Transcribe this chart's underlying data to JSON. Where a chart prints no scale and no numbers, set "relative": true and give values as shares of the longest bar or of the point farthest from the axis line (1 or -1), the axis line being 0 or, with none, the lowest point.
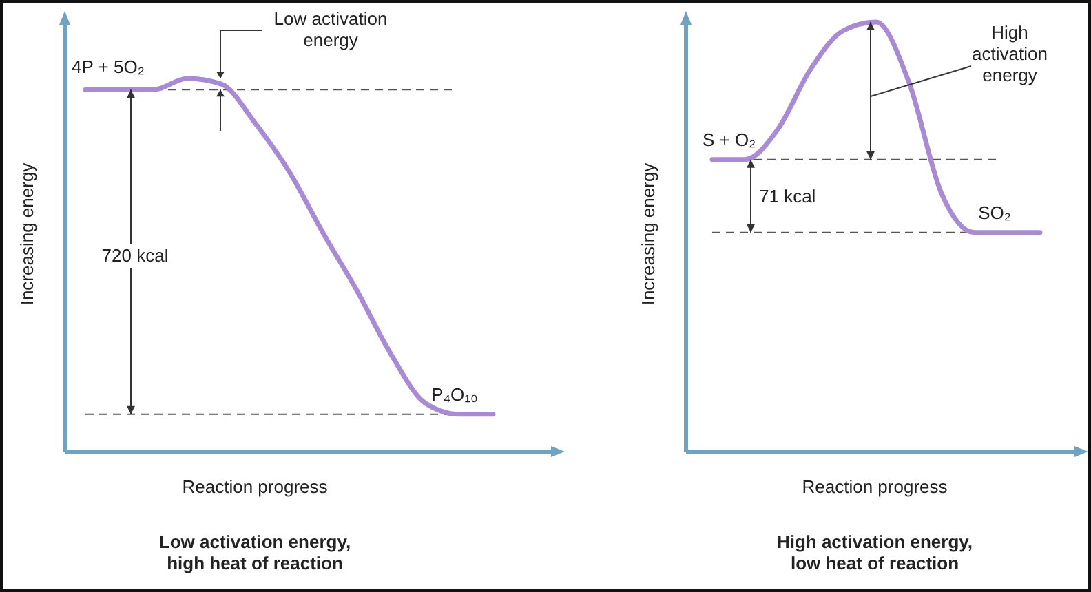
{
  "chart_data": [
    {
      "type": "line",
      "title": "Low activation energy, high heat of reaction",
      "xlabel": "Reaction progress",
      "ylabel": "Increasing energy",
      "relative": true,
      "categories": [
        null,
        null,
        null,
        null,
        null,
        null,
        null,
        null,
        null,
        null,
        null,
        null,
        null
      ],
      "series": [
        {
          "color": "#a88bd2",
          "values": [
            0.97,
            0.97,
            0.97,
            1.0,
            0.985,
            0.88,
            0.75,
            0.585,
            0.43,
            0.26,
            0.13,
            0.1,
            0.1
          ]
        }
      ],
      "ref_lines": [
        {
          "axis": "y",
          "value": 0.97,
          "line_style": "dashed"
        },
        {
          "axis": "y",
          "value": 0.1,
          "line_style": "dashed"
        }
      ],
      "annotations": [
        "4P + 5O₂",
        "Low activation energy",
        "720 kcal",
        "P₄O₁₀"
      ]
    },
    {
      "type": "line",
      "title": "High activation energy, low heat of reaction",
      "xlabel": "Reaction progress",
      "ylabel": "Increasing energy",
      "relative": true,
      "categories": [
        null,
        null,
        null,
        null,
        null,
        null,
        null,
        null,
        null,
        null,
        null
      ],
      "series": [
        {
          "color": "#a88bd2",
          "values": [
            0.68,
            0.68,
            0.75,
            0.89,
            0.98,
            1.0,
            0.86,
            0.6,
            0.51,
            0.51,
            0.51
          ]
        }
      ],
      "ref_lines": [
        {
          "axis": "y",
          "value": 0.68,
          "line_style": "dashed"
        },
        {
          "axis": "y",
          "value": 0.51,
          "line_style": "dashed"
        }
      ],
      "annotations": [
        "S + O₂",
        "High activation energy",
        "71 kcal",
        "SO₂"
      ]
    }
  ]
}
